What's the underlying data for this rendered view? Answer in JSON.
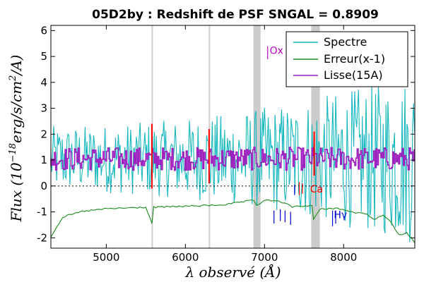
{
  "chart_data": {
    "type": "line",
    "title": "05D2by : Redshift de PSF SNGAL = 0.8909",
    "xlabel": "λ observé (Å)",
    "ylabel": "Flux (10^-18 erg/s/cm²/A)",
    "ylabel_parts": {
      "main": "Flux (10",
      "exp": "−18",
      "tail": "erg/s/cm",
      "exp2": "2",
      "tail2": "/A)"
    },
    "xlim": [
      4300,
      8900
    ],
    "ylim": [
      -2.4,
      6.2
    ],
    "x_ticks": [
      {
        "value": 5000,
        "label": "5000"
      },
      {
        "value": 6000,
        "label": "6000"
      },
      {
        "value": 7000,
        "label": "7000"
      },
      {
        "value": 8000,
        "label": "8000"
      }
    ],
    "y_ticks": [
      {
        "value": -2,
        "label": "-2"
      },
      {
        "value": -1,
        "label": "-1"
      },
      {
        "value": 0,
        "label": "0"
      },
      {
        "value": 1,
        "label": "1"
      },
      {
        "value": 2,
        "label": "2"
      },
      {
        "value": 3,
        "label": "3"
      },
      {
        "value": 4,
        "label": "4"
      },
      {
        "value": 5,
        "label": "5"
      },
      {
        "value": 6,
        "label": "6"
      }
    ],
    "zero_line": 0,
    "shaded_bands": [
      {
        "from": 5572,
        "to": 5582,
        "color": "#cfcfcf"
      },
      {
        "from": 6295,
        "to": 6305,
        "color": "#cfcfcf"
      },
      {
        "from": 6860,
        "to": 6950,
        "color": "#cccccc"
      },
      {
        "from": 7590,
        "to": 7700,
        "color": "#cccccc"
      }
    ],
    "legend": {
      "position": "top-right",
      "entries": [
        {
          "label": "Spectre",
          "color": "#17b8c0"
        },
        {
          "label": "Erreur(x-1)",
          "color": "#1a8a1a"
        },
        {
          "label": "Lisse(15A)",
          "color": "#a020c0"
        }
      ]
    },
    "series": [
      {
        "name": "Spectre",
        "color": "#17b8c0",
        "kind": "noisy",
        "baseline": 1.05,
        "x_range": [
          4300,
          8900
        ],
        "step": 12,
        "spread_start": 1.6,
        "spread_end": 4.2
      },
      {
        "name": "Lisse(15A)",
        "color": "#a020c0",
        "kind": "smooth",
        "baseline": 1.05,
        "x_range": [
          4300,
          8900
        ],
        "step": 15,
        "spread": 0.45
      },
      {
        "name": "Erreur(x-1)",
        "color": "#1a8a1a",
        "points": [
          [
            4300,
            -1.95
          ],
          [
            4450,
            -1.2
          ],
          [
            4700,
            -0.98
          ],
          [
            5000,
            -0.88
          ],
          [
            5500,
            -0.82
          ],
          [
            5577,
            -1.45
          ],
          [
            5600,
            -0.82
          ],
          [
            6000,
            -0.78
          ],
          [
            6300,
            -0.75
          ],
          [
            6500,
            -0.72
          ],
          [
            6863,
            -0.55
          ],
          [
            6900,
            -0.75
          ],
          [
            7000,
            -0.55
          ],
          [
            7200,
            -0.6
          ],
          [
            7350,
            -0.8
          ],
          [
            7600,
            -0.75
          ],
          [
            7620,
            -1.3
          ],
          [
            7700,
            -0.9
          ],
          [
            7900,
            -0.85
          ],
          [
            8100,
            -1.0
          ],
          [
            8300,
            -1.1
          ],
          [
            8400,
            -1.3
          ],
          [
            8500,
            -1.1
          ],
          [
            8600,
            -1.4
          ],
          [
            8700,
            -1.9
          ],
          [
            8800,
            -1.8
          ],
          [
            8900,
            -2.2
          ]
        ]
      }
    ],
    "spikes": [
      {
        "x": 5577,
        "y1": -0.1,
        "y2": 2.4,
        "color": "#ff0000"
      },
      {
        "x": 6300,
        "y1": 0.1,
        "y2": 2.2,
        "color": "#ff0000"
      },
      {
        "x": 7628,
        "y1": 0.4,
        "y2": 2.1,
        "color": "#ff0000"
      }
    ],
    "line_labels": [
      {
        "text": "Ox",
        "x": 7030,
        "y": 5.1,
        "color": "#c000c0",
        "tick": {
          "x": 7040,
          "y1": 4.9,
          "y2": 5.4
        }
      },
      {
        "text": "Ca",
        "x": 7540,
        "y": -0.25,
        "color": "#ff0000",
        "tick": {
          "x": 7440,
          "y1": -0.35,
          "y2": 0.15
        }
      },
      {
        "text": "Hγ",
        "x": 7840,
        "y": -1.25,
        "color": "#0000dd",
        "tick": {
          "x": 7860,
          "y1": -1.55,
          "y2": -0.95
        }
      }
    ],
    "marker_ticks": [
      {
        "x": 7380,
        "y1": -0.35,
        "y2": 0.05,
        "color": "#0000cc"
      },
      {
        "x": 7480,
        "y1": -0.3,
        "y2": 0.1,
        "color": "#ff0000"
      },
      {
        "x": 7120,
        "y1": -1.45,
        "y2": -0.95,
        "color": "#0000cc"
      },
      {
        "x": 7200,
        "y1": -1.35,
        "y2": -0.9,
        "color": "#0000cc"
      },
      {
        "x": 7260,
        "y1": -1.4,
        "y2": -0.95,
        "color": "#0000cc"
      },
      {
        "x": 7330,
        "y1": -1.5,
        "y2": -1.0,
        "color": "#0000cc"
      },
      {
        "x": 7900,
        "y1": -1.45,
        "y2": -0.95,
        "color": "#0000cc"
      }
    ],
    "grid": false
  }
}
